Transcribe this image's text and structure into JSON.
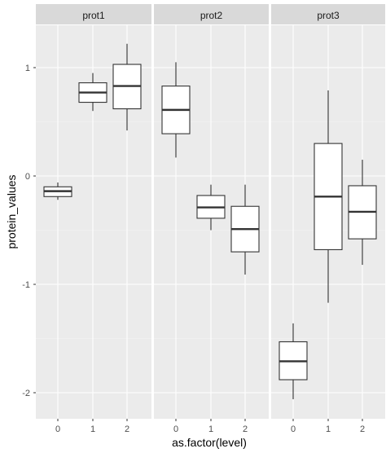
{
  "chart_data": {
    "type": "boxplot",
    "facet_by": "protein",
    "facets": [
      {
        "label": "prot1",
        "boxes": [
          {
            "x": "0",
            "lower_whisker": -0.22,
            "q1": -0.19,
            "median": -0.14,
            "q3": -0.1,
            "upper_whisker": -0.06
          },
          {
            "x": "1",
            "lower_whisker": 0.6,
            "q1": 0.68,
            "median": 0.77,
            "q3": 0.86,
            "upper_whisker": 0.95
          },
          {
            "x": "2",
            "lower_whisker": 0.42,
            "q1": 0.62,
            "median": 0.83,
            "q3": 1.03,
            "upper_whisker": 1.22
          }
        ]
      },
      {
        "label": "prot2",
        "boxes": [
          {
            "x": "0",
            "lower_whisker": 0.17,
            "q1": 0.39,
            "median": 0.61,
            "q3": 0.83,
            "upper_whisker": 1.05
          },
          {
            "x": "1",
            "lower_whisker": -0.5,
            "q1": -0.39,
            "median": -0.29,
            "q3": -0.18,
            "upper_whisker": -0.08
          },
          {
            "x": "2",
            "lower_whisker": -0.91,
            "q1": -0.7,
            "median": -0.49,
            "q3": -0.28,
            "upper_whisker": -0.08
          }
        ]
      },
      {
        "label": "prot3",
        "boxes": [
          {
            "x": "0",
            "lower_whisker": -2.06,
            "q1": -1.88,
            "median": -1.71,
            "q3": -1.53,
            "upper_whisker": -1.36
          },
          {
            "x": "1",
            "lower_whisker": -1.17,
            "q1": -0.68,
            "median": -0.19,
            "q3": 0.3,
            "upper_whisker": 0.79
          },
          {
            "x": "2",
            "lower_whisker": -0.82,
            "q1": -0.58,
            "median": -0.33,
            "q3": -0.09,
            "upper_whisker": 0.15
          }
        ]
      }
    ],
    "x_categories": [
      "0",
      "1",
      "2"
    ],
    "y_ticks": [
      -2,
      -1,
      0,
      1
    ],
    "y_tick_labels": [
      "-2",
      "-1",
      "0",
      "1"
    ],
    "ylim": [
      -2.18,
      1.33
    ],
    "xlabel": "as.factor(level)",
    "ylabel": "protein_values",
    "grid": true
  },
  "colors": {
    "panel_background": "#ebebeb",
    "strip_background": "#d9d9d9",
    "grid_major": "#ffffff",
    "grid_minor": "#f5f5f5",
    "box_fill": "#ffffff",
    "box_line": "#333333",
    "median_line": "#333333"
  }
}
